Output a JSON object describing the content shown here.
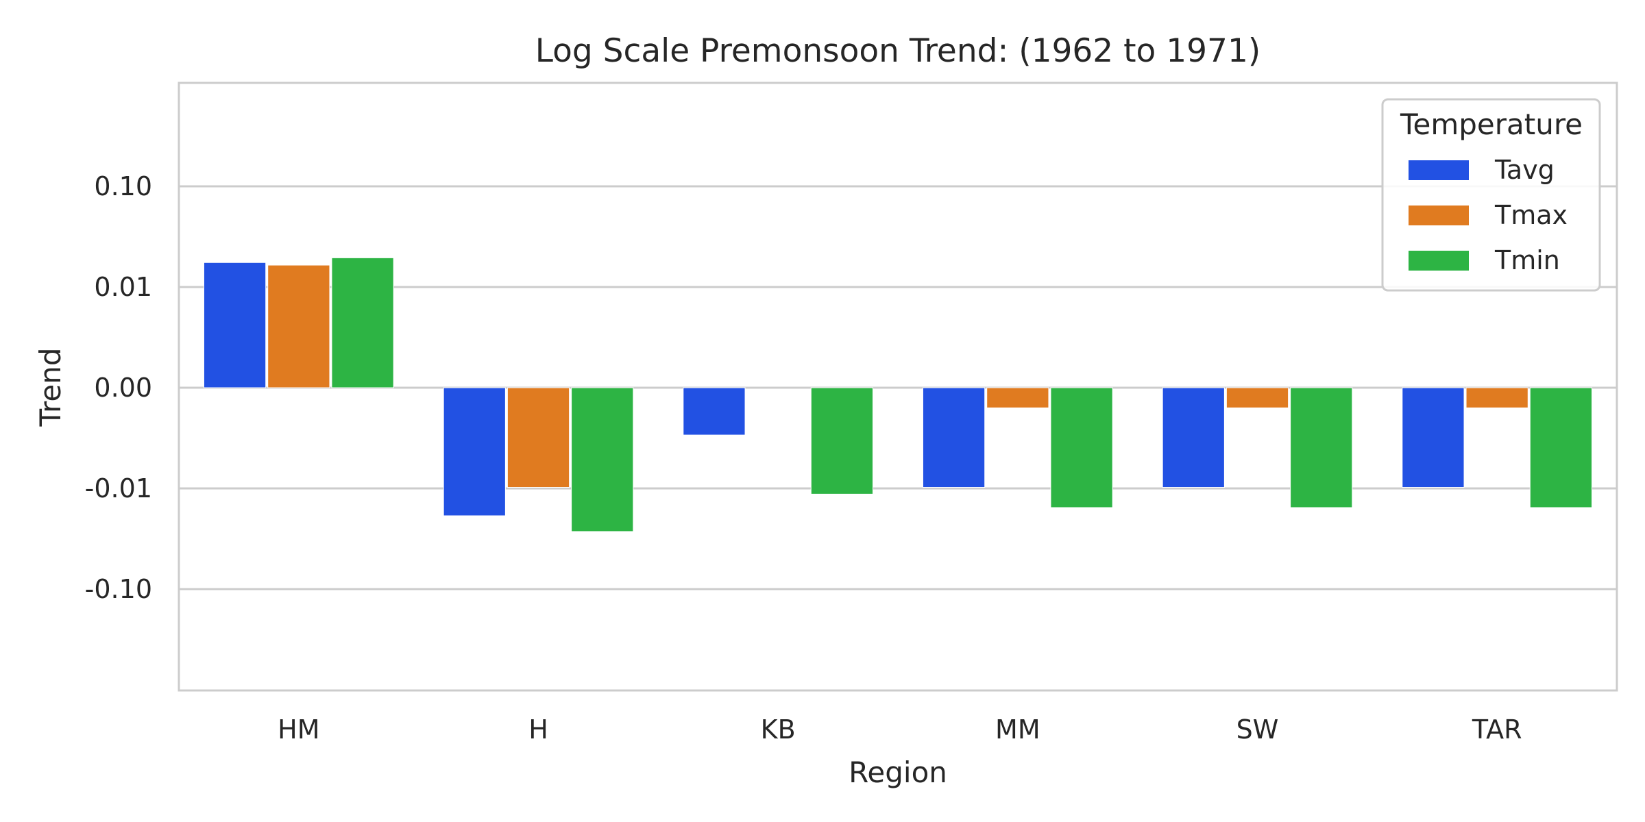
{
  "chart_data": {
    "type": "bar",
    "title": "Log Scale Premonsoon Trend: (1962 to 1971)",
    "xlabel": "Region",
    "ylabel": "Trend",
    "scale": "symlog",
    "grid": "horizontal",
    "categories": [
      "HM",
      "H",
      "KB",
      "MM",
      "SW",
      "TAR"
    ],
    "y_ticks": [
      0.1,
      0.01,
      0.0,
      -0.01,
      -0.1
    ],
    "y_tick_labels": [
      "0.10",
      "0.01",
      "0.00",
      "-0.01",
      "-0.10"
    ],
    "ylim": [
      -0.7,
      0.7
    ],
    "legend": {
      "title": "Temperature",
      "placement": "top-right"
    },
    "series": [
      {
        "name": "Tavg",
        "color": "#2251e3",
        "values": [
          0.0175,
          -0.0187,
          -0.0047,
          -0.0099,
          -0.0099,
          -0.0099
        ]
      },
      {
        "name": "Tmax",
        "color": "#e07b20",
        "values": [
          0.0165,
          -0.0099,
          0.0,
          -0.002,
          -0.002,
          -0.002
        ]
      },
      {
        "name": "Tmin",
        "color": "#2db444",
        "values": [
          0.0195,
          -0.0268,
          -0.0114,
          -0.0155,
          -0.0155,
          -0.0155
        ]
      }
    ]
  }
}
